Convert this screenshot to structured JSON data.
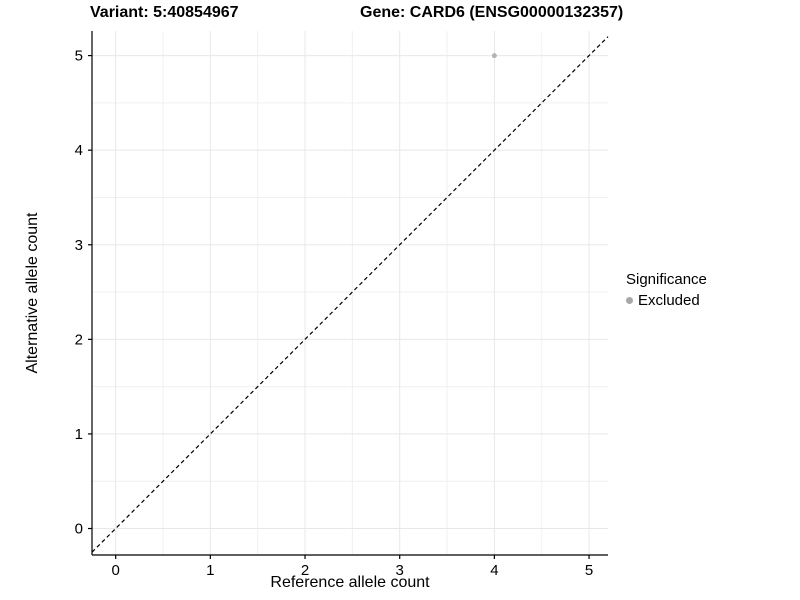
{
  "chart_data": {
    "type": "scatter",
    "titles": {
      "left": "Variant: 5:40854967",
      "right": "Gene: CARD6 (ENSG00000132357)"
    },
    "xlabel": "Reference allele count",
    "ylabel": "Alternative allele count",
    "xticks": [
      0,
      1,
      2,
      3,
      4,
      5
    ],
    "yticks": [
      0,
      1,
      2,
      3,
      4,
      5
    ],
    "xlim": [
      -0.25,
      5.2
    ],
    "ylim": [
      -0.28,
      5.26
    ],
    "grid": {
      "on": true,
      "major_step": 1,
      "minor_step": 0.5,
      "major_color": "#e8e8e8",
      "minor_color": "#f0f0f0"
    },
    "axis_color": "#000000",
    "identity_line": {
      "style": "dashed",
      "color": "#000000",
      "from": [
        -0.25,
        -0.25
      ],
      "to": [
        5.2,
        5.2
      ]
    },
    "points": [
      {
        "x": 4,
        "y": 5,
        "series": "Excluded",
        "color": "#b3b3b3",
        "radius": 2.5
      }
    ],
    "legend": {
      "title": "Significance",
      "position": "right",
      "entries": [
        {
          "label": "Excluded",
          "color": "#a8a8a8"
        }
      ]
    }
  }
}
